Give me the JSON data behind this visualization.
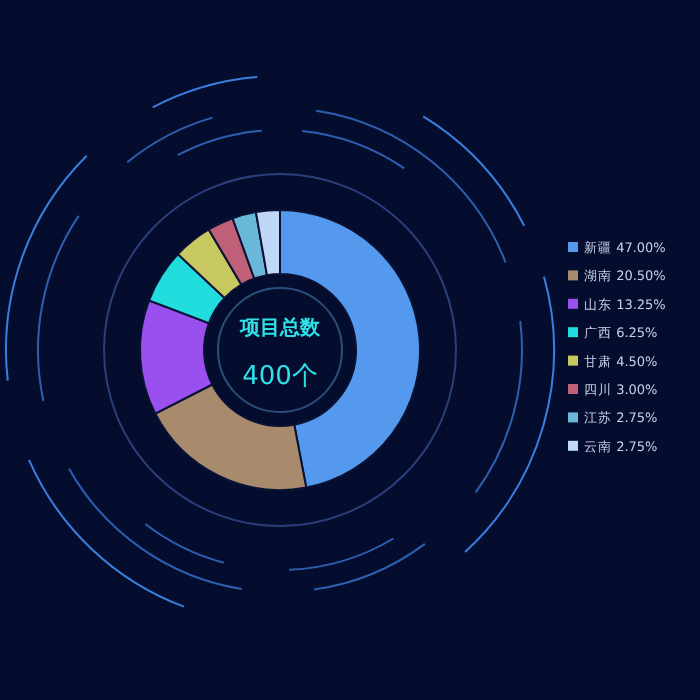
{
  "chart_data": {
    "type": "donut",
    "categories": [
      "新疆",
      "湖南",
      "山东",
      "广西",
      "甘肃",
      "四川",
      "江苏",
      "云南"
    ],
    "values": [
      47.0,
      20.5,
      13.25,
      6.25,
      4.5,
      3.0,
      2.75,
      2.75
    ],
    "value_labels": [
      "47.00%",
      "20.50%",
      "13.25%",
      "6.25%",
      "4.50%",
      "3.00%",
      "2.75%",
      "2.75%"
    ],
    "colors": [
      "#5599ee",
      "#a88a6c",
      "#9950ee",
      "#22dddd",
      "#c8c860",
      "#c06078",
      "#6ab8d8",
      "#c0d8f8"
    ],
    "annotations": [
      "项目总数",
      "400个"
    ],
    "legend": "right"
  }
}
